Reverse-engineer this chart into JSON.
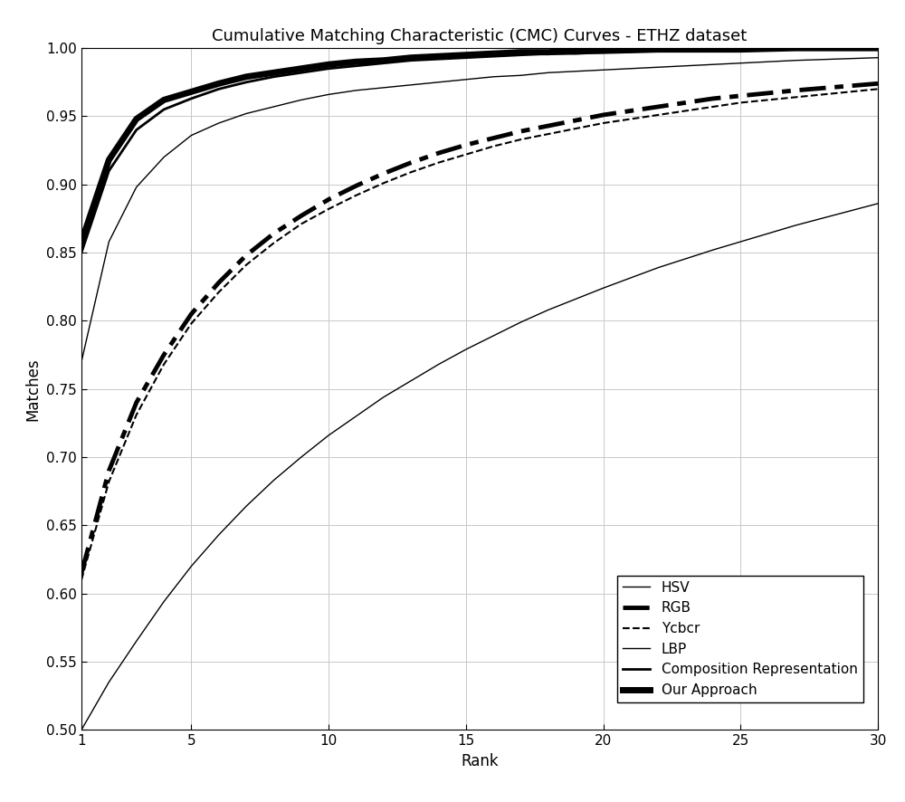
{
  "title": "Cumulative Matching Characteristic (CMC) Curves - ETHZ dataset",
  "xlabel": "Rank",
  "ylabel": "Matches",
  "xlim": [
    1,
    30
  ],
  "ylim": [
    0.5,
    1.0
  ],
  "xticks": [
    1,
    5,
    10,
    15,
    20,
    25,
    30
  ],
  "yticks": [
    0.5,
    0.55,
    0.6,
    0.65,
    0.7,
    0.75,
    0.8,
    0.85,
    0.9,
    0.95,
    1.0
  ],
  "background_color": "#ffffff",
  "grid_color": "#c8c8c8",
  "curves": {
    "HSV": {
      "x": [
        1,
        2,
        3,
        4,
        5,
        6,
        7,
        8,
        9,
        10,
        11,
        12,
        13,
        14,
        15,
        16,
        17,
        18,
        19,
        20,
        22,
        24,
        25,
        27,
        30
      ],
      "y": [
        0.77,
        0.858,
        0.898,
        0.92,
        0.936,
        0.945,
        0.952,
        0.957,
        0.962,
        0.966,
        0.969,
        0.971,
        0.973,
        0.975,
        0.977,
        0.979,
        0.98,
        0.982,
        0.983,
        0.984,
        0.986,
        0.988,
        0.989,
        0.991,
        0.993
      ],
      "linewidth": 1.0,
      "linestyle": "thin_solid"
    },
    "RGB": {
      "x": [
        1,
        2,
        3,
        4,
        5,
        6,
        7,
        8,
        9,
        10,
        11,
        12,
        13,
        14,
        15,
        16,
        17,
        18,
        19,
        20,
        22,
        24,
        25,
        27,
        30
      ],
      "y": [
        0.615,
        0.69,
        0.74,
        0.775,
        0.805,
        0.828,
        0.848,
        0.864,
        0.877,
        0.889,
        0.899,
        0.908,
        0.916,
        0.923,
        0.929,
        0.934,
        0.939,
        0.943,
        0.947,
        0.951,
        0.957,
        0.963,
        0.965,
        0.969,
        0.974
      ],
      "linewidth": 3.5,
      "linestyle": "thick_dash_dot"
    },
    "Ycbcr": {
      "x": [
        1,
        2,
        3,
        4,
        5,
        6,
        7,
        8,
        9,
        10,
        11,
        12,
        13,
        14,
        15,
        16,
        17,
        18,
        19,
        20,
        22,
        24,
        25,
        27,
        30
      ],
      "y": [
        0.61,
        0.682,
        0.731,
        0.768,
        0.798,
        0.821,
        0.841,
        0.857,
        0.871,
        0.882,
        0.892,
        0.901,
        0.909,
        0.916,
        0.922,
        0.928,
        0.933,
        0.937,
        0.941,
        0.945,
        0.951,
        0.957,
        0.96,
        0.964,
        0.97
      ],
      "linewidth": 1.5,
      "linestyle": "dashed"
    },
    "LBP": {
      "x": [
        1,
        2,
        3,
        4,
        5,
        6,
        7,
        8,
        9,
        10,
        11,
        12,
        13,
        14,
        15,
        16,
        17,
        18,
        19,
        20,
        22,
        24,
        25,
        27,
        30
      ],
      "y": [
        0.5,
        0.535,
        0.565,
        0.594,
        0.62,
        0.643,
        0.664,
        0.683,
        0.7,
        0.716,
        0.73,
        0.744,
        0.756,
        0.768,
        0.779,
        0.789,
        0.799,
        0.808,
        0.816,
        0.824,
        0.839,
        0.852,
        0.858,
        0.87,
        0.886
      ],
      "linewidth": 1.0,
      "linestyle": "thin_solid"
    },
    "Composition Representation": {
      "x": [
        1,
        2,
        3,
        4,
        5,
        6,
        7,
        8,
        9,
        10,
        11,
        12,
        13,
        14,
        15,
        16,
        17,
        18,
        19,
        20,
        22,
        24,
        25,
        27,
        30
      ],
      "y": [
        0.85,
        0.91,
        0.94,
        0.955,
        0.963,
        0.97,
        0.975,
        0.979,
        0.982,
        0.985,
        0.987,
        0.989,
        0.991,
        0.992,
        0.993,
        0.994,
        0.995,
        0.996,
        0.996,
        0.997,
        0.998,
        0.998,
        0.999,
        0.999,
        1.0
      ],
      "linewidth": 2.0,
      "linestyle": "medium_solid"
    },
    "Our Approach": {
      "x": [
        1,
        2,
        3,
        4,
        5,
        6,
        7,
        8,
        9,
        10,
        11,
        12,
        13,
        14,
        15,
        16,
        17,
        18,
        19,
        20,
        22,
        24,
        25,
        27,
        30
      ],
      "y": [
        0.858,
        0.918,
        0.948,
        0.962,
        0.968,
        0.974,
        0.979,
        0.982,
        0.985,
        0.988,
        0.99,
        0.991,
        0.993,
        0.994,
        0.995,
        0.996,
        0.997,
        0.997,
        0.998,
        0.998,
        0.999,
        0.999,
        0.999,
        1.0,
        1.0
      ],
      "linewidth": 5.0,
      "linestyle": "thick_solid"
    }
  },
  "legend_order": [
    "HSV",
    "RGB",
    "Ycbcr",
    "LBP",
    "Composition Representation",
    "Our Approach"
  ],
  "title_fontsize": 13,
  "label_fontsize": 12,
  "tick_fontsize": 11,
  "legend_fontsize": 11
}
